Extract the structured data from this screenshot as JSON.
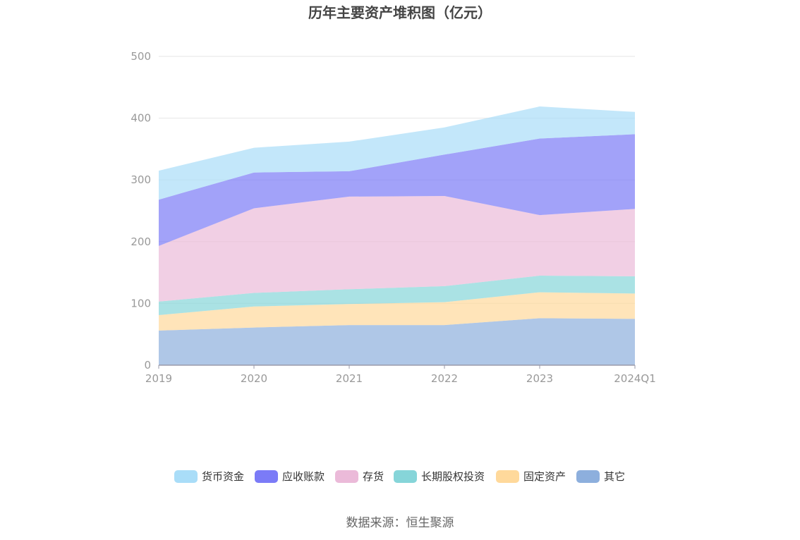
{
  "chart_data": {
    "type": "area",
    "stacked": true,
    "title": "历年主要资产堆积图（亿元）",
    "categories": [
      "2019",
      "2020",
      "2021",
      "2022",
      "2023",
      "2024Q1"
    ],
    "ylim": [
      0,
      500
    ],
    "yticks": [
      0,
      100,
      200,
      300,
      400,
      500
    ],
    "grid": true,
    "legend_position": "bottom",
    "series": [
      {
        "name": "其它",
        "color": "#8DAFDD",
        "values": [
          56,
          61,
          65,
          65,
          76,
          75
        ]
      },
      {
        "name": "固定资产",
        "color": "#FFD99B",
        "values": [
          25,
          34,
          34,
          37,
          42,
          41
        ]
      },
      {
        "name": "长期股权投资",
        "color": "#86D5D9",
        "values": [
          22,
          22,
          24,
          26,
          27,
          28
        ]
      },
      {
        "name": "存货",
        "color": "#EBBAD9",
        "values": [
          90,
          137,
          150,
          146,
          98,
          109
        ]
      },
      {
        "name": "应收账款",
        "color": "#7B7BF7",
        "values": [
          75,
          58,
          41,
          67,
          124,
          121
        ]
      },
      {
        "name": "货币资金",
        "color": "#A9DDF8",
        "values": [
          47,
          40,
          48,
          44,
          52,
          36
        ]
      }
    ],
    "legend_order": [
      "货币资金",
      "应收账款",
      "存货",
      "长期股权投资",
      "固定资产",
      "其它"
    ]
  },
  "footer": {
    "source": "数据来源：恒生聚源"
  }
}
